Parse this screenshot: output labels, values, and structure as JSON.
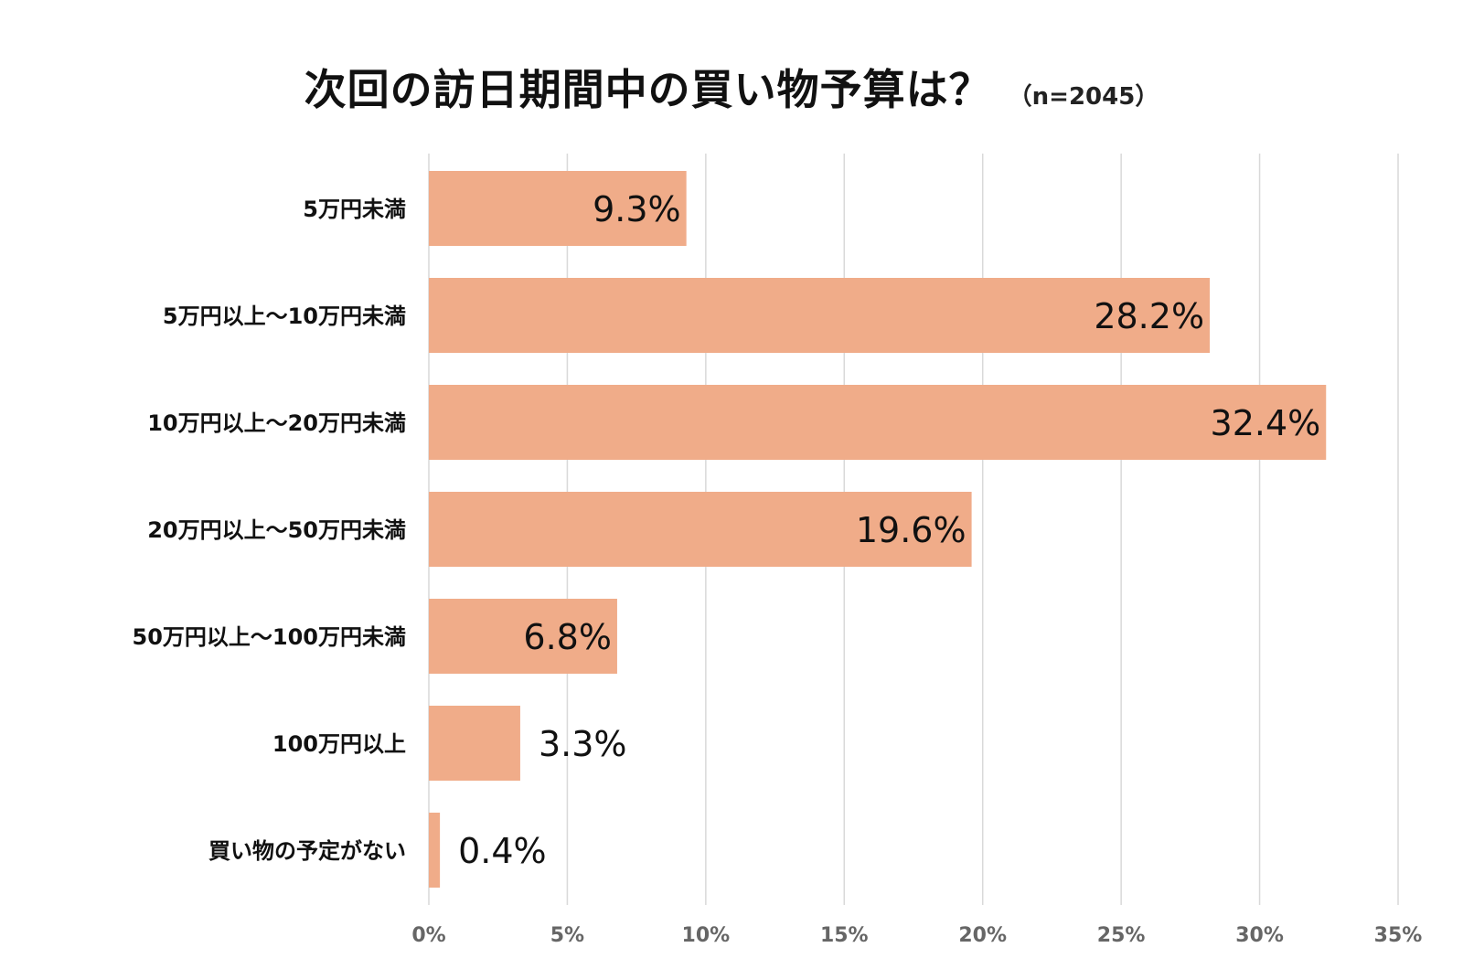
{
  "title": {
    "main": "次回の訪日期間中の買い物予算は？",
    "sample": "（n=2045）"
  },
  "colors": {
    "bar": "#F0AC89",
    "grid": "#D9D9D9",
    "text": "#111111",
    "tick": "#666666"
  },
  "chart_data": {
    "type": "bar",
    "orientation": "horizontal",
    "title": "次回の訪日期間中の買い物予算は？（n=2045）",
    "categories": [
      "5万円未満",
      "5万円以上～10万円未満",
      "10万円以上～20万円未満",
      "20万円以上～50万円未満",
      "50万円以上～100万円未満",
      "100万円以上",
      "買い物の予定がない"
    ],
    "values": [
      9.3,
      28.2,
      32.4,
      19.6,
      6.8,
      3.3,
      0.4
    ],
    "value_labels": [
      "9.3%",
      "28.2%",
      "32.4%",
      "19.6%",
      "6.8%",
      "3.3%",
      "0.4%"
    ],
    "xlim": [
      0,
      35
    ],
    "xticks": [
      0,
      5,
      10,
      15,
      20,
      25,
      30,
      35
    ],
    "xtick_labels": [
      "0%",
      "5%",
      "10%",
      "15%",
      "20%",
      "25%",
      "30%",
      "35%"
    ],
    "xlabel": "",
    "ylabel": "",
    "grid": true,
    "legend": "none"
  }
}
